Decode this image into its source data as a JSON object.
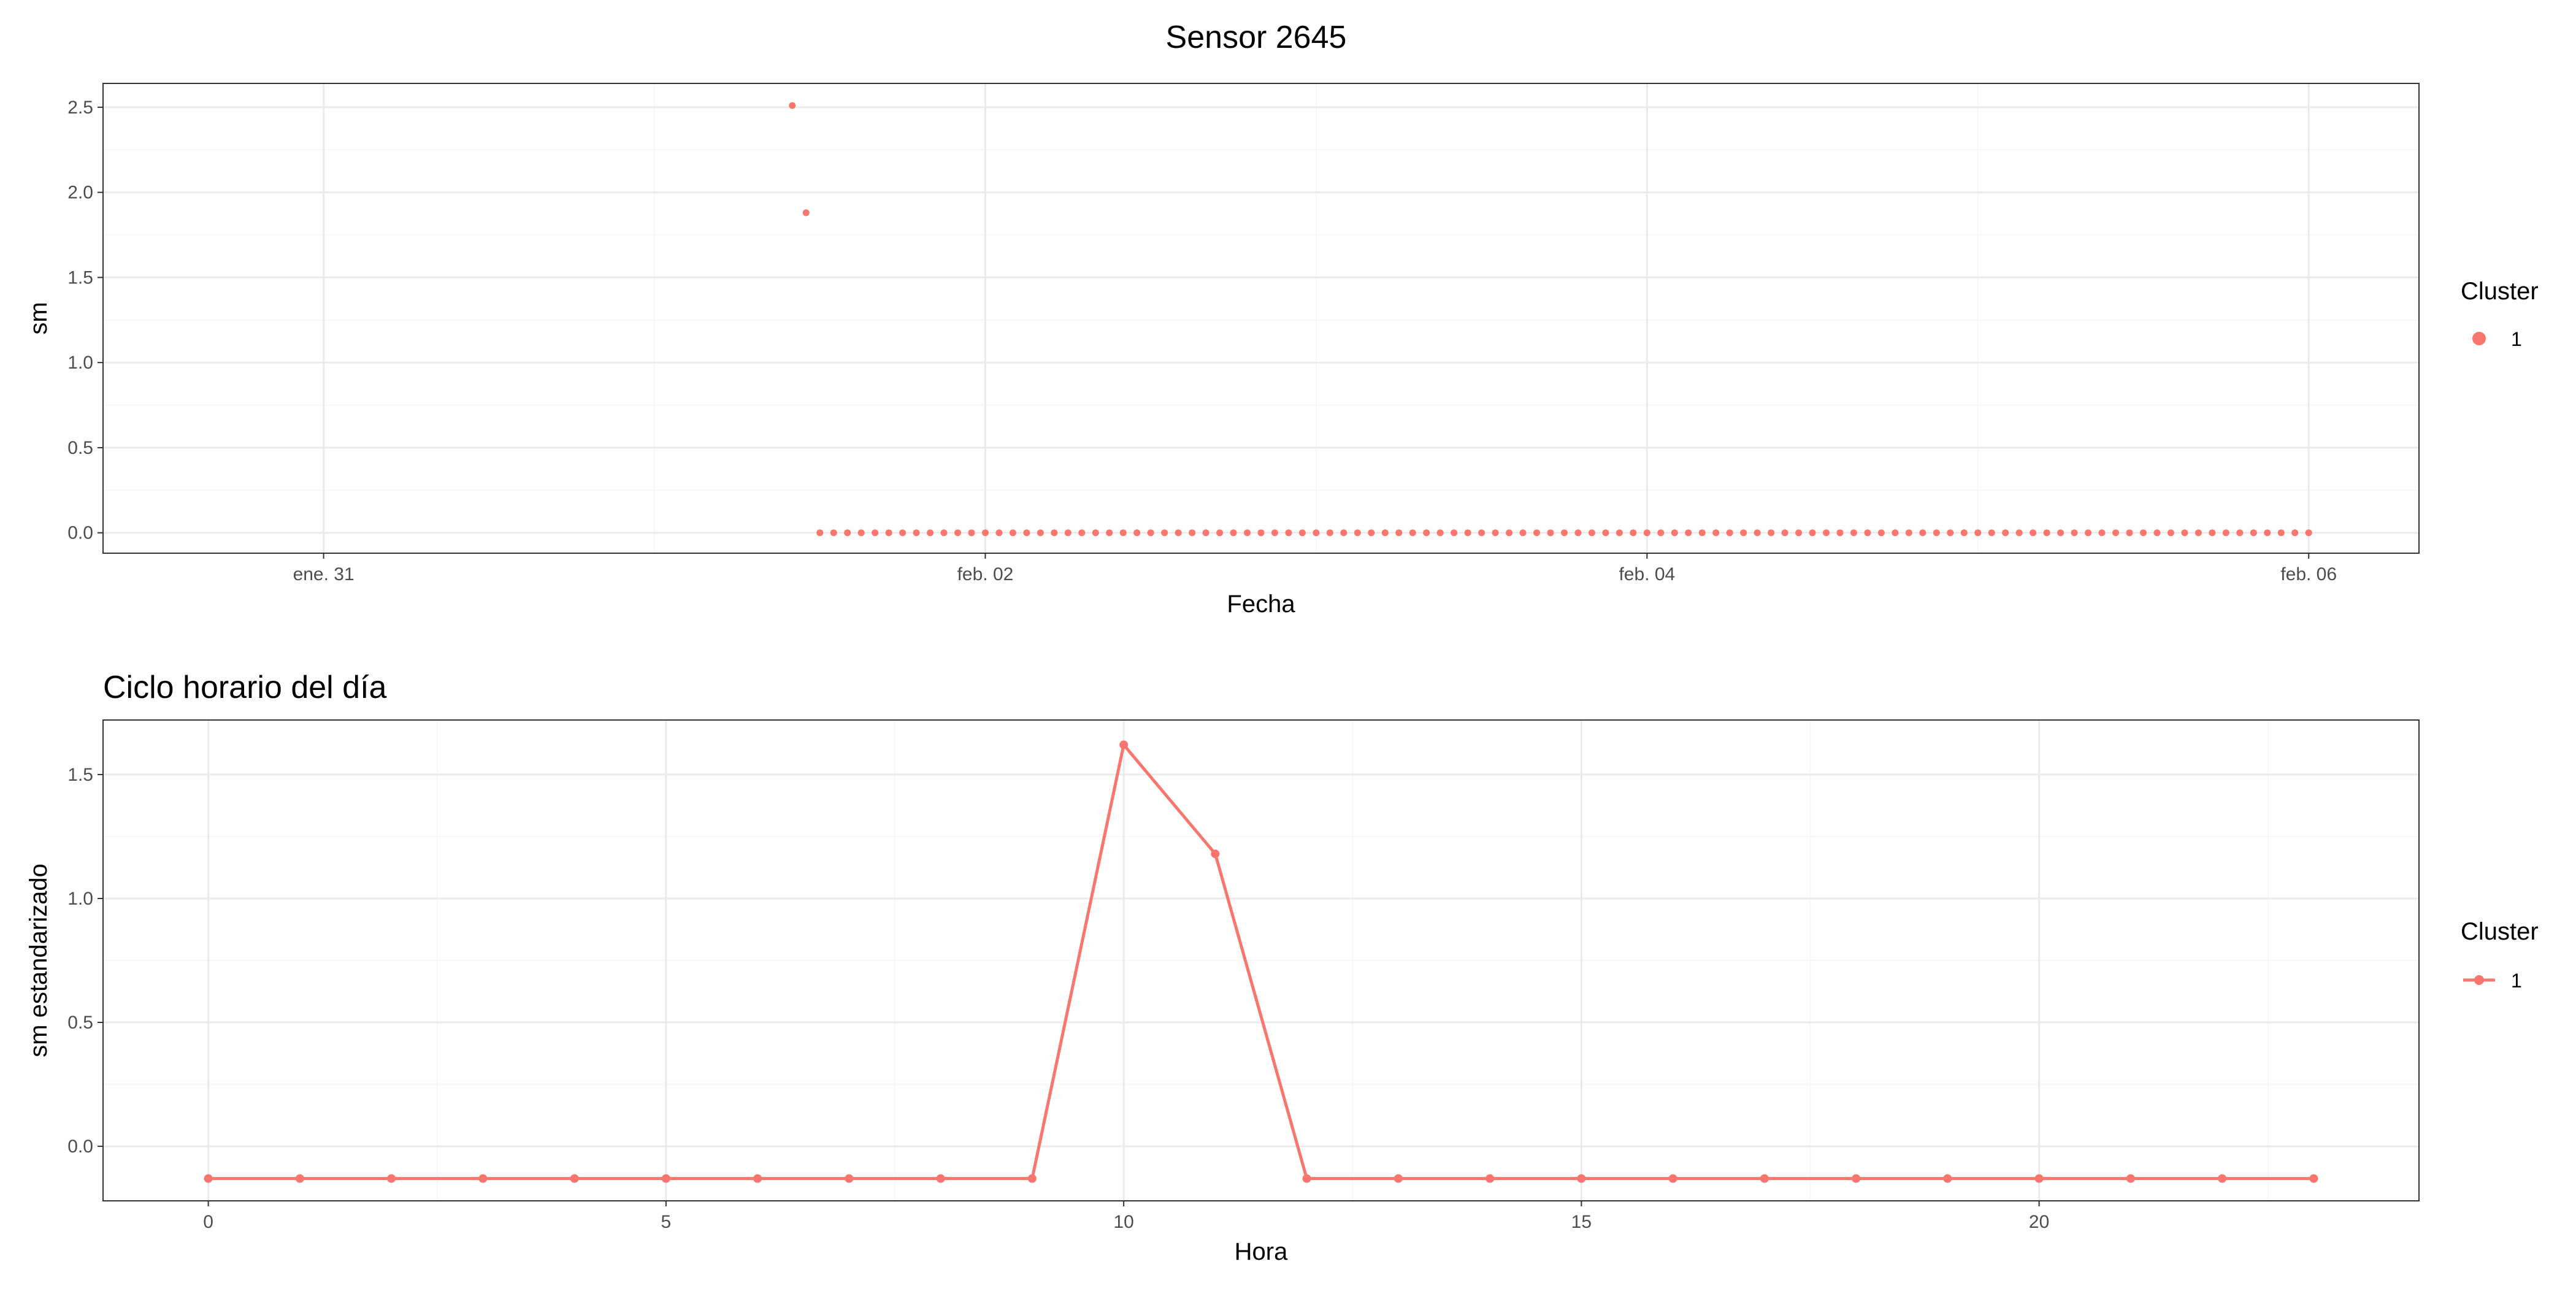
{
  "figure": {
    "title": "Sensor 2645"
  },
  "chart_data": [
    {
      "type": "scatter",
      "title": "",
      "xlabel": "Fecha",
      "ylabel": "sm",
      "x_type": "date",
      "xlim": [
        "2025-01-30T08:00",
        "2025-02-06T08:00"
      ],
      "ylim": [
        -0.12,
        2.64
      ],
      "x_ticks": [
        {
          "label": "ene. 31",
          "value": "2025-01-31T00:00"
        },
        {
          "label": "feb. 02",
          "value": "2025-02-02T00:00"
        },
        {
          "label": "feb. 04",
          "value": "2025-02-04T00:00"
        },
        {
          "label": "feb. 06",
          "value": "2025-02-06T00:00"
        }
      ],
      "y_ticks": [
        0.0,
        0.5,
        1.0,
        1.5,
        2.0,
        2.5
      ],
      "y_tick_labels": [
        "0.0",
        "0.5",
        "1.0",
        "1.5",
        "2.0",
        "2.5"
      ],
      "grid": true,
      "legend": {
        "title": "Cluster",
        "position": "right",
        "entries": [
          "1"
        ]
      },
      "series": [
        {
          "name": "1",
          "color": "#F8766D",
          "points": [
            {
              "x": "2025-02-01T10:00",
              "y": 2.51
            },
            {
              "x": "2025-02-01T11:00",
              "y": 1.88
            }
          ],
          "hourly_run": {
            "start": "2025-02-01T12:00",
            "end": "2025-02-06T00:00",
            "step_hours": 1,
            "y": 0.0
          }
        }
      ]
    },
    {
      "type": "line",
      "title": "Ciclo horario del día",
      "xlabel": "Hora",
      "ylabel": "sm estandarizado",
      "xlim": [
        -1.15,
        24.15
      ],
      "ylim": [
        -0.22,
        1.72
      ],
      "x_ticks": [
        0,
        5,
        10,
        15,
        20
      ],
      "y_ticks": [
        0.0,
        0.5,
        1.0,
        1.5
      ],
      "y_tick_labels": [
        "0.0",
        "0.5",
        "1.0",
        "1.5"
      ],
      "grid": true,
      "legend": {
        "title": "Cluster",
        "position": "right",
        "entries": [
          "1"
        ]
      },
      "x": [
        0,
        1,
        2,
        3,
        4,
        5,
        6,
        7,
        8,
        9,
        10,
        11,
        12,
        13,
        14,
        15,
        16,
        17,
        18,
        19,
        20,
        21,
        22,
        23
      ],
      "series": [
        {
          "name": "1",
          "color": "#F8766D",
          "values": [
            -0.13,
            -0.13,
            -0.13,
            -0.13,
            -0.13,
            -0.13,
            -0.13,
            -0.13,
            -0.13,
            -0.13,
            1.62,
            1.18,
            -0.13,
            -0.13,
            -0.13,
            -0.13,
            -0.13,
            -0.13,
            -0.13,
            -0.13,
            -0.13,
            -0.13,
            -0.13,
            -0.13
          ]
        }
      ]
    }
  ]
}
